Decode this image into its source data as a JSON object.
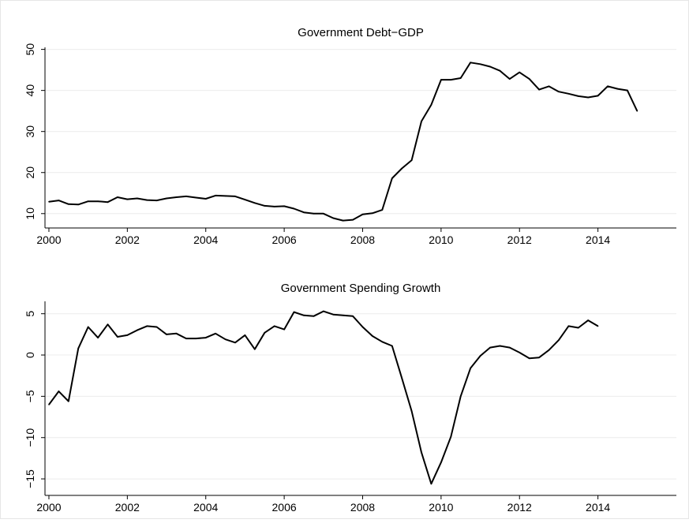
{
  "chart_data": [
    {
      "type": "line",
      "title": "Government Debt−GDP",
      "xlabel": "",
      "ylabel": "",
      "xlim": [
        1999.9,
        2016.0
      ],
      "ylim": [
        6.5,
        50.5
      ],
      "xticks": [
        2000,
        2002,
        2004,
        2006,
        2008,
        2010,
        2012,
        2014
      ],
      "xtick_labels": [
        "2000",
        "2002",
        "2004",
        "2006",
        "2008",
        "2010",
        "2012",
        "2014"
      ],
      "yticks": [
        10,
        20,
        30,
        40,
        50
      ],
      "ytick_labels": [
        "10",
        "20",
        "30",
        "40",
        "50"
      ],
      "grid": true,
      "line_color": "#000000",
      "series": [
        {
          "x": [
            2000.0,
            2000.25,
            2000.5,
            2000.75,
            2001.0,
            2001.25,
            2001.5,
            2001.75,
            2002.0,
            2002.25,
            2002.5,
            2002.75,
            2003.0,
            2003.25,
            2003.5,
            2003.75,
            2004.0,
            2004.25,
            2004.5,
            2004.75,
            2005.0,
            2005.25,
            2005.5,
            2005.75,
            2006.0,
            2006.25,
            2006.5,
            2006.75,
            2007.0,
            2007.25,
            2007.5,
            2007.75,
            2008.0,
            2008.25,
            2008.5,
            2008.75,
            2009.0,
            2009.25,
            2009.5,
            2009.75,
            2010.0,
            2010.25,
            2010.5,
            2010.75,
            2011.0,
            2011.25,
            2011.5,
            2011.75,
            2012.0,
            2012.25,
            2012.5,
            2012.75,
            2013.0,
            2013.25,
            2013.5,
            2013.75,
            2014.0,
            2014.25,
            2014.5,
            2014.75,
            2015.0
          ],
          "y": [
            12.9,
            13.2,
            12.3,
            12.2,
            13.0,
            13.0,
            12.8,
            14.0,
            13.5,
            13.7,
            13.3,
            13.2,
            13.7,
            14.0,
            14.2,
            13.9,
            13.6,
            14.4,
            14.3,
            14.2,
            13.4,
            12.6,
            11.9,
            11.7,
            11.8,
            11.2,
            10.3,
            10.0,
            10.0,
            8.9,
            8.3,
            8.5,
            9.8,
            10.1,
            10.9,
            18.6,
            21.0,
            23.0,
            32.5,
            36.5,
            42.6,
            42.6,
            43.0,
            46.8,
            46.4,
            45.8,
            44.8,
            42.8,
            44.4,
            42.8,
            40.2,
            41.0,
            39.7,
            39.2,
            38.6,
            38.3,
            38.7,
            41.0,
            40.4,
            40.0,
            35.0
          ]
        }
      ]
    },
    {
      "type": "line",
      "title": "Government Spending Growth",
      "xlabel": "",
      "ylabel": "",
      "xlim": [
        1999.9,
        2016.0
      ],
      "ylim": [
        -17.0,
        6.5
      ],
      "xticks": [
        2000,
        2002,
        2004,
        2006,
        2008,
        2010,
        2012,
        2014
      ],
      "xtick_labels": [
        "2000",
        "2002",
        "2004",
        "2006",
        "2008",
        "2010",
        "2012",
        "2014"
      ],
      "yticks": [
        -15,
        -10,
        -5,
        0,
        5
      ],
      "ytick_labels": [
        "−15",
        "−10",
        "−5",
        "0",
        "5"
      ],
      "grid": true,
      "line_color": "#000000",
      "series": [
        {
          "x": [
            2000.0,
            2000.25,
            2000.5,
            2000.75,
            2001.0,
            2001.25,
            2001.5,
            2001.75,
            2002.0,
            2002.25,
            2002.5,
            2002.75,
            2003.0,
            2003.25,
            2003.5,
            2003.75,
            2004.0,
            2004.25,
            2004.5,
            2004.75,
            2005.0,
            2005.25,
            2005.5,
            2005.75,
            2006.0,
            2006.25,
            2006.5,
            2006.75,
            2007.0,
            2007.25,
            2007.5,
            2007.75,
            2008.0,
            2008.25,
            2008.5,
            2008.75,
            2009.0,
            2009.25,
            2009.5,
            2009.75,
            2010.0,
            2010.25,
            2010.5,
            2010.75,
            2011.0,
            2011.25,
            2011.5,
            2011.75,
            2012.0,
            2012.25,
            2012.5,
            2012.75,
            2013.0,
            2013.25,
            2013.5,
            2013.75,
            2014.0
          ],
          "y": [
            -6.0,
            -4.4,
            -5.6,
            0.8,
            3.4,
            2.1,
            3.7,
            2.2,
            2.4,
            3.0,
            3.5,
            3.4,
            2.5,
            2.6,
            2.0,
            2.0,
            2.1,
            2.6,
            1.9,
            1.5,
            2.4,
            0.7,
            2.7,
            3.5,
            3.1,
            5.2,
            4.8,
            4.7,
            5.3,
            4.9,
            4.8,
            4.7,
            3.4,
            2.3,
            1.6,
            1.1,
            -2.8,
            -6.8,
            -11.8,
            -15.6,
            -13.0,
            -9.9,
            -5.0,
            -1.6,
            -0.1,
            0.9,
            1.1,
            0.9,
            0.3,
            -0.4,
            -0.3,
            0.6,
            1.8,
            3.5,
            3.3,
            4.2,
            3.5
          ]
        }
      ]
    }
  ]
}
